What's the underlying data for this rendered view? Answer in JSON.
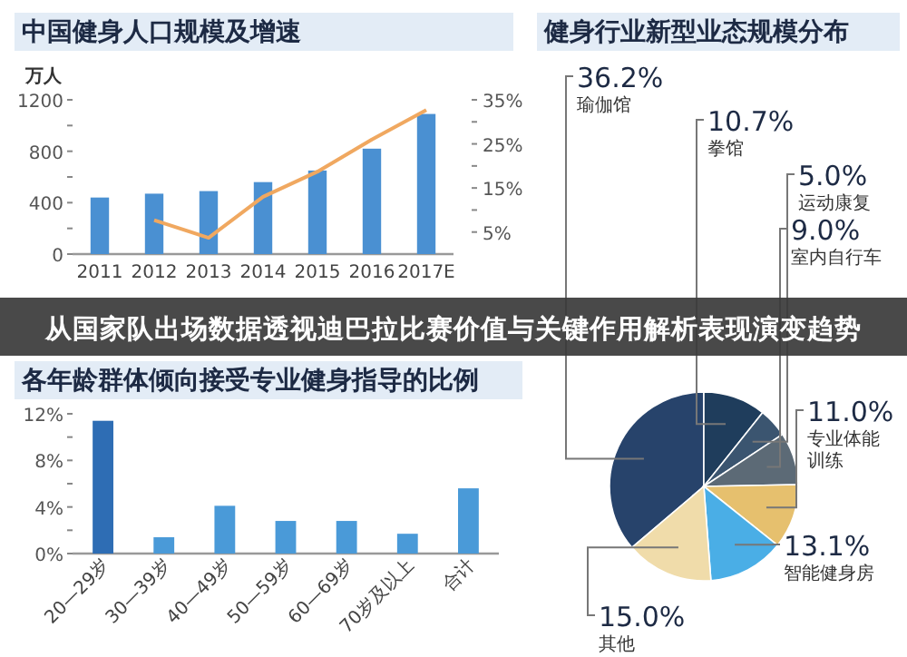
{
  "chart_data": [
    {
      "type": "bar",
      "title": "中国健身人口规模及增速",
      "ylabel": "万人",
      "categories": [
        "2011",
        "2012",
        "2013",
        "2014",
        "2015",
        "2016",
        "2017E"
      ],
      "series": [
        {
          "type": "bar",
          "color": "#4a90d2",
          "values": [
            440,
            470,
            490,
            560,
            650,
            820,
            1090
          ]
        },
        {
          "type": "line",
          "axis": "y2",
          "color": "#f0a860",
          "values": [
            null,
            7.7,
            3.7,
            13,
            18.7,
            26,
            32.7
          ]
        }
      ],
      "ylim": [
        0,
        1200
      ],
      "yticks": [
        0,
        {
          "value": 200,
          "label": null
        },
        400,
        {
          "value": 600,
          "label": null
        },
        800,
        {
          "value": 1000,
          "label": null
        },
        1200
      ],
      "y2lim": [
        0,
        35
      ],
      "y2ticks": [
        {
          "value": 5,
          "label": "5%"
        },
        {
          "value": 10,
          "label": null
        },
        {
          "value": 15,
          "label": "15%"
        },
        {
          "value": 20,
          "label": null
        },
        {
          "value": 25,
          "label": "25%"
        },
        {
          "value": 30,
          "label": null
        },
        {
          "value": 35,
          "label": "35%"
        }
      ],
      "grid": false
    },
    {
      "type": "pie",
      "title": "健身行业新型业态规模分布",
      "categories": [
        "瑜伽馆",
        "拳馆",
        "运动康复",
        "室内自行车",
        "专业体能训练",
        "智能健身房",
        "其他"
      ],
      "values": [
        36.2,
        10.7,
        5.0,
        9.0,
        11.0,
        13.1,
        15.0
      ],
      "value_labels": [
        "36.2%",
        "10.7%",
        "5.0%",
        "9.0%",
        "11.0%",
        "13.1%",
        "15.0%"
      ],
      "colors": [
        "#27436b",
        "#1f3d5c",
        "#3b5570",
        "#5c6a76",
        "#e6c06e",
        "#4aaee6",
        "#f0dcaa"
      ]
    },
    {
      "type": "bar",
      "title": "各年龄群体倾向接受专业健身指导的比例",
      "categories": [
        "20—29岁",
        "30—39岁",
        "40—49岁",
        "50—59岁",
        "60—69岁",
        "70岁及以上",
        "合计"
      ],
      "values": [
        11.4,
        1.4,
        4.1,
        2.8,
        2.8,
        1.7,
        5.6
      ],
      "colors": [
        "#2e6db4",
        "#4a9ad8",
        "#4a9ad8",
        "#4a9ad8",
        "#4a9ad8",
        "#4a9ad8",
        "#4a9ad8"
      ],
      "ylim": [
        0,
        12
      ],
      "yticks": [
        {
          "value": 0,
          "label": "0%"
        },
        {
          "value": 2,
          "label": null
        },
        {
          "value": 4,
          "label": "4%"
        },
        {
          "value": 6,
          "label": null
        },
        {
          "value": 8,
          "label": "8%"
        },
        {
          "value": 10,
          "label": null
        },
        {
          "value": 12,
          "label": "12%"
        }
      ],
      "grid": false
    },
    {
      "type": "other",
      "title": "从国家队出场数据透视迪巴拉比赛价值与关键作用解析表现演变趋势"
    }
  ]
}
